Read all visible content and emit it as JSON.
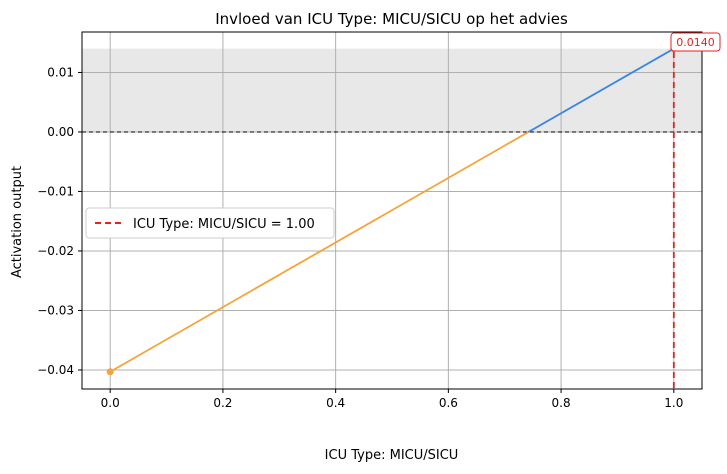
{
  "chart_data": {
    "type": "line",
    "title": "Invloed van ICU Type: MICU/SICU op het advies",
    "xlabel": "ICU Type: MICU/SICU",
    "ylabel": "Activation output",
    "xlim": [
      -0.05,
      1.05
    ],
    "ylim": [
      -0.0432,
      0.0168
    ],
    "xticks": [
      0.0,
      0.2,
      0.4,
      0.6,
      0.8,
      1.0
    ],
    "xtick_labels": [
      "0.0",
      "0.2",
      "0.4",
      "0.6",
      "0.8",
      "1.0"
    ],
    "yticks": [
      -0.04,
      -0.03,
      -0.02,
      -0.01,
      0.0,
      0.01
    ],
    "ytick_labels": [
      "−0.04",
      "−0.03",
      "−0.02",
      "−0.01",
      "0.00",
      "0.01"
    ],
    "grid": true,
    "series": [
      {
        "x": [
          0.0,
          1.0
        ],
        "y": [
          -0.0403,
          0.014
        ],
        "negative_color": "#f4a53a",
        "positive_color": "#3b86e0"
      }
    ],
    "start_marker": {
      "x": 0.0,
      "y": -0.0403,
      "color": "#f4a53a"
    },
    "end_marker": {
      "x": 1.0,
      "y": 0.014,
      "color": "#f46b6b"
    },
    "shaded_band": {
      "y0": 0.0,
      "y1": 0.014,
      "color": "#e8e8e8"
    },
    "zero_line": {
      "y": 0.0,
      "color": "#000000",
      "style": "dashed"
    },
    "vline": {
      "x": 1.0,
      "color": "#e8221b",
      "style": "dashed"
    },
    "annotation": {
      "text": "0.0140",
      "x": 1.0,
      "y": 0.014,
      "color": "#e8221b"
    },
    "legend": {
      "position": "center-left",
      "entries": [
        {
          "label": "ICU Type: MICU/SICU = 1.00",
          "color": "#e8221b",
          "style": "dashed"
        }
      ]
    }
  }
}
